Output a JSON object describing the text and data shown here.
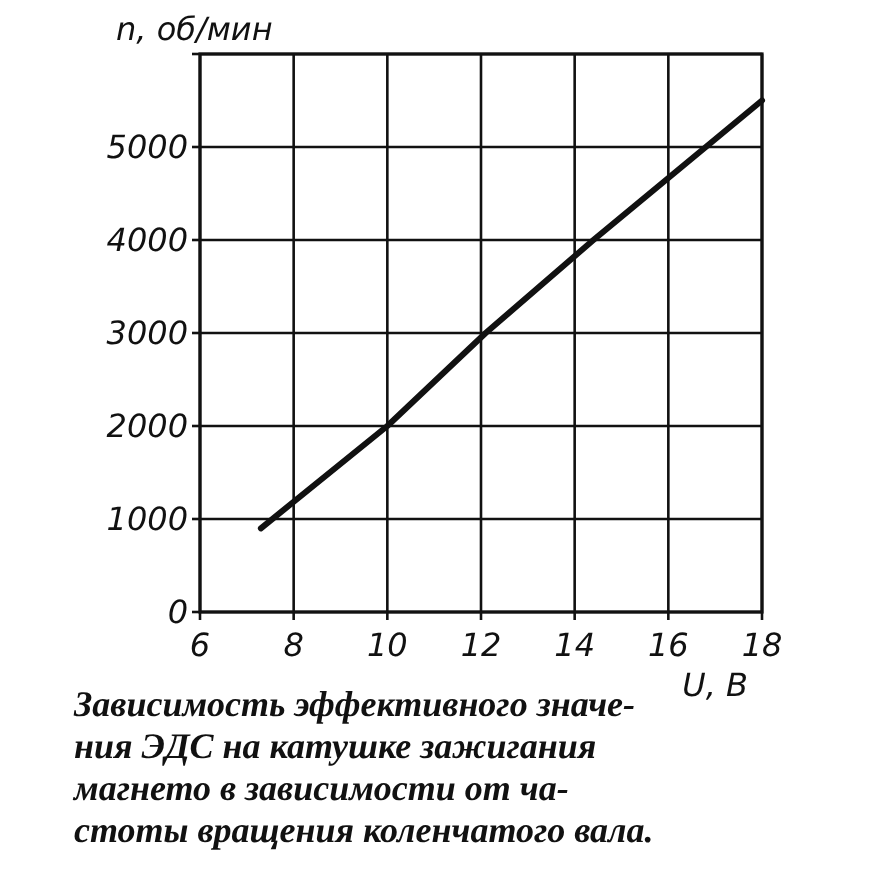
{
  "chart_data": {
    "type": "line",
    "xlabel": "U, В",
    "ylabel": "n, об/мин",
    "annotations": [
      "Зависимость эффективного значе-\nния ЭДС на катушке зажигания\nмагнето в зависимости от ча-\nстоты вращения коленчатого вала."
    ],
    "x": [
      7.3,
      10,
      12.1,
      14.4,
      16.8,
      18
    ],
    "series": [
      {
        "color": "#111111",
        "values": [
          900,
          2000,
          3000,
          4000,
          5000,
          5500
        ]
      }
    ],
    "xlim": [
      6,
      18
    ],
    "ylim": [
      0,
      6000
    ],
    "xticks": [
      6,
      8,
      10,
      12,
      14,
      16,
      18
    ],
    "yticks": [
      0,
      1000,
      2000,
      3000,
      4000,
      5000,
      {
        "value": 6000,
        "label": null
      }
    ],
    "grid": true
  }
}
